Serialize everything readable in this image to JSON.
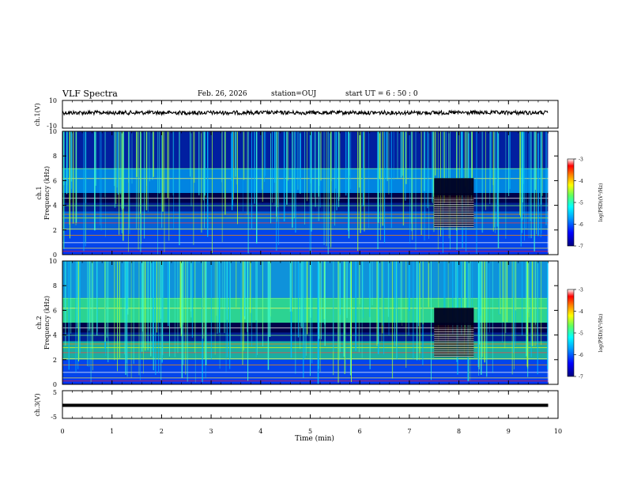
{
  "header": {
    "title": "VLF Spectra",
    "date": "Feb. 26, 2026",
    "station": "station=OUJ",
    "start_ut": "start  UT =   6  : 50 : 0"
  },
  "chart_data": [
    {
      "type": "line",
      "name": "ch1-waveform",
      "ylabel": "ch.1(V)",
      "ylim": [
        -10,
        10
      ],
      "y_ticks": [
        "10",
        "-10"
      ],
      "x_range": [
        0,
        10
      ],
      "description_level": 0
    },
    {
      "type": "heatmap",
      "name": "ch1-spectrogram",
      "ylabel_channel": "ch.1",
      "ylabel": "Frequency (kHz)",
      "ylim": [
        0,
        10
      ],
      "y_ticks": [
        "0",
        "2",
        "4",
        "6",
        "8",
        "10"
      ],
      "x_range": [
        0,
        9.8
      ],
      "colorbar": {
        "label": "log(PSD)(V²/Hz)",
        "range": [
          -7,
          -3
        ],
        "ticks": [
          "-3",
          "-4",
          "-5",
          "-6",
          "-7"
        ]
      }
    },
    {
      "type": "heatmap",
      "name": "ch2-spectrogram",
      "ylabel_channel": "ch.2",
      "ylabel": "Frequency (kHz)",
      "ylim": [
        0,
        10
      ],
      "y_ticks": [
        "0",
        "2",
        "4",
        "6",
        "8",
        "10"
      ],
      "x_range": [
        0,
        9.8
      ],
      "colorbar": {
        "label": "log(PSD)(V²/Hz)",
        "range": [
          -7,
          -3
        ],
        "ticks": [
          "-3",
          "-4",
          "-5",
          "-6",
          "-7"
        ]
      }
    },
    {
      "type": "line",
      "name": "ch3-waveform",
      "ylabel": "ch.3(V)",
      "ylim": [
        -5,
        5
      ],
      "y_ticks": [
        "5",
        "-5"
      ],
      "x_range": [
        0,
        9.8
      ],
      "level": -0.3
    }
  ],
  "x_axis": {
    "label": "Time (min)",
    "range": [
      0,
      10
    ],
    "ticks": [
      "0",
      "1",
      "2",
      "3",
      "4",
      "5",
      "6",
      "7",
      "8",
      "9",
      "10"
    ]
  },
  "colors": {
    "colormap": [
      "#000080",
      "#0000ff",
      "#0080ff",
      "#00ffff",
      "#80ff80",
      "#ffff00",
      "#ff8000",
      "#ff0000",
      "#ffffff"
    ]
  }
}
